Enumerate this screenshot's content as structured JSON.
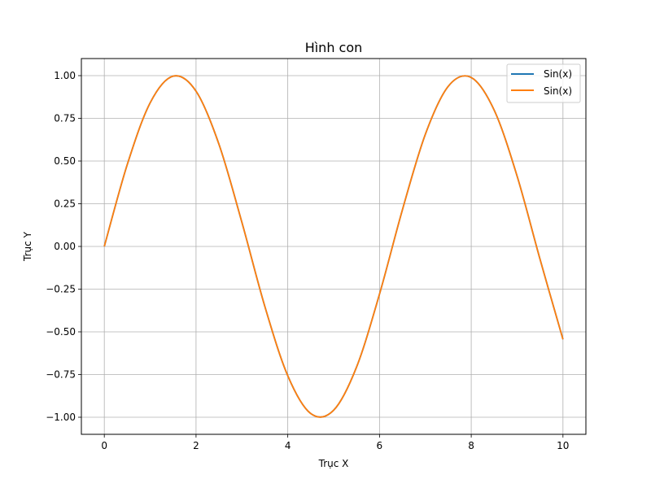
{
  "chart_data": {
    "type": "line",
    "title": "Hình con",
    "xlabel": "Trục X",
    "ylabel": "Trục Y",
    "xlim": [
      -0.5,
      10.5
    ],
    "ylim": [
      -1.1,
      1.1
    ],
    "grid": true,
    "legend_position": "top-right",
    "xticks": [
      0,
      2,
      4,
      6,
      8,
      10
    ],
    "xtick_labels": [
      "0",
      "2",
      "4",
      "6",
      "8",
      "10"
    ],
    "yticks": [
      -1.0,
      -0.75,
      -0.5,
      -0.25,
      0.0,
      0.25,
      0.5,
      0.75,
      1.0
    ],
    "ytick_labels": [
      "−1.00",
      "−0.75",
      "−0.50",
      "−0.25",
      "0.00",
      "0.25",
      "0.50",
      "0.75",
      "1.00"
    ],
    "series": [
      {
        "name": "Sin(x)",
        "color": "#1f77b4",
        "x": [
          0,
          0.5,
          1,
          1.5,
          2,
          2.5,
          3,
          3.5,
          4,
          4.5,
          5,
          5.5,
          6,
          6.5,
          7,
          7.5,
          8,
          8.5,
          9,
          9.5,
          10
        ],
        "y": [
          0,
          0.479,
          0.841,
          0.997,
          0.909,
          0.598,
          0.141,
          -0.351,
          -0.757,
          -0.978,
          -0.959,
          -0.706,
          -0.279,
          0.215,
          0.657,
          0.938,
          0.989,
          0.798,
          0.412,
          -0.075,
          -0.544
        ]
      },
      {
        "name": "Sin(x)",
        "color": "#ff7f0e",
        "x": [
          0,
          0.5,
          1,
          1.5,
          2,
          2.5,
          3,
          3.5,
          4,
          4.5,
          5,
          5.5,
          6,
          6.5,
          7,
          7.5,
          8,
          8.5,
          9,
          9.5,
          10
        ],
        "y": [
          0,
          0.479,
          0.841,
          0.997,
          0.909,
          0.598,
          0.141,
          -0.351,
          -0.757,
          -0.978,
          -0.959,
          -0.706,
          -0.279,
          0.215,
          0.657,
          0.938,
          0.989,
          0.798,
          0.412,
          -0.075,
          -0.544
        ]
      }
    ]
  }
}
